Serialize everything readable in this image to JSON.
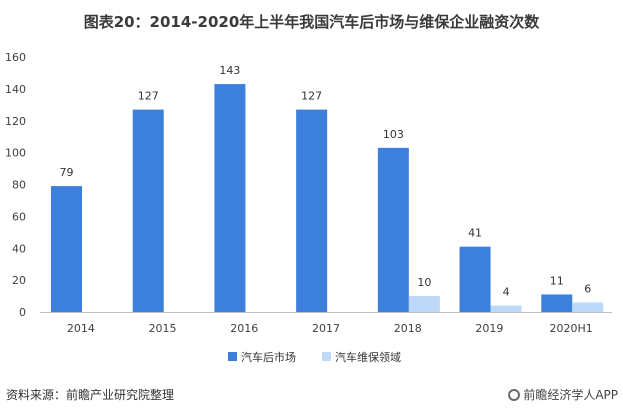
{
  "title": "图表20：2014-2020年上半年我国汽车后市场与维保企业融资次数",
  "source": "资料来源：前瞻产业研究院整理",
  "brand": "前瞻经济学人APP",
  "colors": {
    "series1": "#3d7fdd",
    "series2": "#bcd9fa",
    "axis": "#595959"
  },
  "chart_data": {
    "type": "bar",
    "categories": [
      "2014",
      "2015",
      "2016",
      "2017",
      "2018",
      "2019",
      "2020H1"
    ],
    "series": [
      {
        "name": "汽车后市场",
        "values": [
          79,
          127,
          143,
          127,
          103,
          41,
          11
        ]
      },
      {
        "name": "汽车维保领域",
        "values": [
          null,
          null,
          null,
          null,
          10,
          4,
          6
        ]
      }
    ],
    "ylim": [
      0,
      160
    ],
    "yticks": [
      0,
      20,
      40,
      60,
      80,
      100,
      120,
      140,
      160
    ],
    "grid": false,
    "legend": "bottom"
  }
}
